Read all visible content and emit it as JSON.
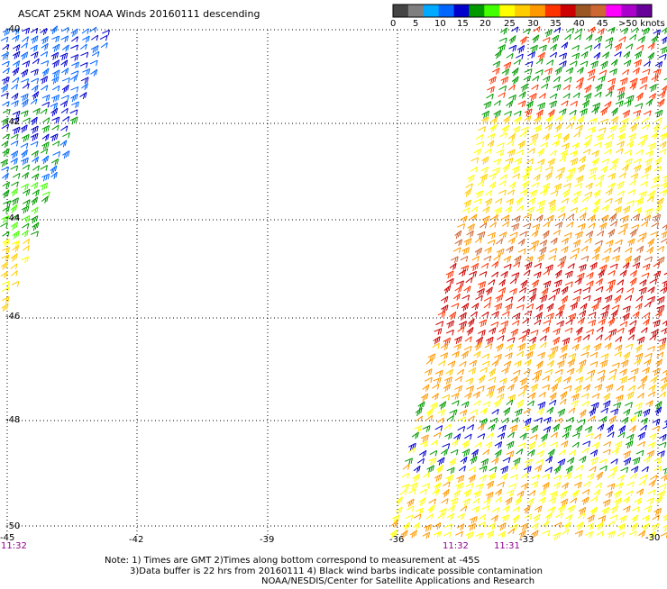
{
  "title": "ASCAT 25KM NOAA Winds 20160111 descending",
  "legend": {
    "colors": [
      "#444444",
      "#7f7f7f",
      "#00aaff",
      "#0066ff",
      "#0000cc",
      "#009900",
      "#44ff00",
      "#ffff00",
      "#ffcc00",
      "#ff9900",
      "#ff3300",
      "#cc0000",
      "#995522",
      "#cc6633",
      "#ff00ff",
      "#aa00cc",
      "#660099"
    ],
    "labels": [
      "0",
      "5",
      "10",
      "15",
      "20",
      "25",
      "30",
      "35",
      "40",
      "45",
      ">50 knots"
    ]
  },
  "lat_labels": [
    "-40",
    "-42",
    "-44",
    "-46",
    "-48",
    "-50"
  ],
  "lon_labels": [
    "-45",
    "-42",
    "-39",
    "-36",
    "-33",
    "-30"
  ],
  "time_labels": [
    "11:32",
    "11:32",
    "11:31"
  ],
  "notes": [
    "Note: 1) Times are GMT 2)Times along bottom correspond to measurement at -45S",
    "3)Data buffer is 22 hrs from 20160111 4) Black wind barbs indicate possible contamination",
    "NOAA/NESDIS/Center for Satellite Applications and Research"
  ]
}
